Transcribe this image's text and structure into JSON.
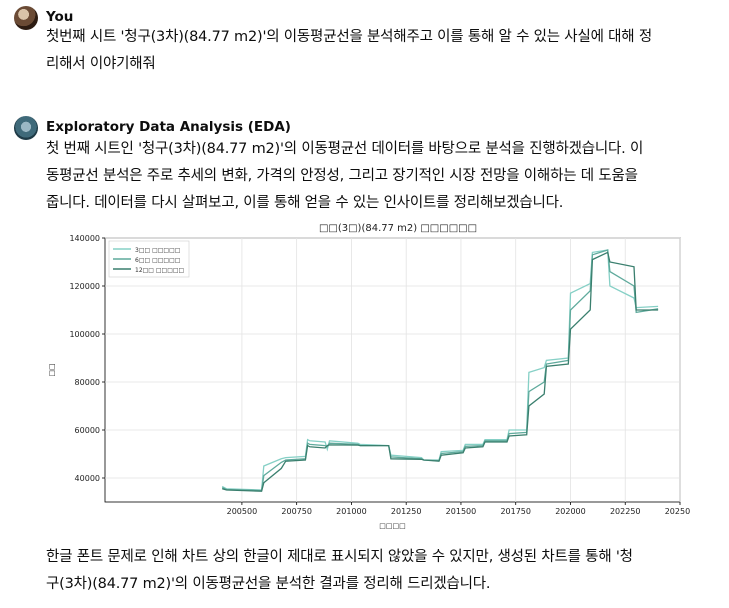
{
  "user": {
    "name": "You",
    "message": [
      "첫번째 시트 '청구(3차)(84.77 m2)'의 이동평균선을 분석해주고 이를 통해 알 수 있는 사실에 대해 정",
      "리해서 이야기해줘"
    ]
  },
  "assistant": {
    "name": "Exploratory Data Analysis (EDA)",
    "intro": [
      "첫 번째 시트인 '청구(3차)(84.77 m2)'의 이동평균선 데이터를 바탕으로 분석을 진행하겠습니다. 이",
      "동평균선 분석은 주로 추세의 변화, 가격의 안정성, 그리고 장기적인 시장 전망을 이해하는 데 도움을",
      "줍니다. 데이터를 다시 살펴보고, 이를 통해 얻을 수 있는 인사이트를 정리해보겠습니다."
    ],
    "outro": [
      "한글 폰트 문제로 인해 차트 상의 한글이 제대로 표시되지 않았을 수 있지만, 생성된 차트를 통해 '청",
      "구(3차)(84.77 m2)'의 이동평균선을 분석한 결과를 정리해 드리겠습니다."
    ]
  },
  "colors": {
    "ma3": "#86d0c6",
    "ma6": "#5faa9c",
    "ma12": "#3a7f6e"
  },
  "chart_data": {
    "type": "line",
    "title": "□□(3□)(84.77 m2) □□□□□□",
    "xlabel": "□□□□",
    "ylabel": "□□",
    "xlim": [
      199875,
      202500
    ],
    "ylim": [
      30000,
      140000
    ],
    "xticks": [
      200500,
      200750,
      201000,
      201250,
      201500,
      201750,
      202000,
      202250,
      202500
    ],
    "xtick_labels": [
      "200500",
      "200750",
      "201000",
      "201250",
      "201500",
      "201750",
      "202000",
      "202250",
      "202500"
    ],
    "yticks": [
      40000,
      60000,
      80000,
      100000,
      120000,
      140000
    ],
    "ytick_labels": [
      "40000",
      "60000",
      "80000",
      "100000",
      "120000",
      "140000"
    ],
    "legend_position": "top-left",
    "series": [
      {
        "name": "3□□ □□□□□",
        "color_key": "ma3",
        "x": [
          200410,
          200430,
          200590,
          200600,
          200680,
          200700,
          200790,
          200800,
          200810,
          200880,
          200890,
          200900,
          201030,
          201040,
          201170,
          201180,
          201320,
          201330,
          201400,
          201410,
          201510,
          201520,
          201600,
          201610,
          201710,
          201720,
          201800,
          201810,
          201880,
          201890,
          201990,
          202000,
          202090,
          202100,
          202170,
          202180,
          202290,
          202300,
          202400
        ],
        "y": [
          36500,
          35500,
          35000,
          45000,
          48000,
          48500,
          49000,
          56000,
          55500,
          55000,
          52000,
          55500,
          54500,
          54000,
          53500,
          49500,
          48500,
          47500,
          47500,
          51000,
          51500,
          54000,
          54000,
          56000,
          56000,
          60000,
          60000,
          84000,
          86000,
          89000,
          90000,
          117000,
          121000,
          134000,
          135000,
          120000,
          115000,
          111000,
          111500
        ]
      },
      {
        "name": "6□□ □□□□□",
        "color_key": "ma6",
        "x": [
          200410,
          200430,
          200590,
          200600,
          200680,
          200700,
          200790,
          200800,
          200810,
          200880,
          200890,
          200900,
          201030,
          201040,
          201170,
          201180,
          201320,
          201330,
          201400,
          201410,
          201510,
          201520,
          201600,
          201610,
          201710,
          201720,
          201800,
          201810,
          201880,
          201890,
          201990,
          202000,
          202090,
          202100,
          202170,
          202180,
          202290,
          202300,
          202400
        ],
        "y": [
          36000,
          35200,
          34800,
          41000,
          46500,
          47500,
          48000,
          54500,
          54000,
          53500,
          53000,
          54500,
          54000,
          53500,
          53500,
          48800,
          48000,
          47500,
          47200,
          50200,
          51000,
          53200,
          53500,
          55500,
          55500,
          58500,
          59000,
          76000,
          80000,
          87500,
          89000,
          110000,
          118000,
          133000,
          135000,
          126000,
          120000,
          109000,
          110500
        ]
      },
      {
        "name": "12□□ □□□□□",
        "color_key": "ma12",
        "x": [
          200410,
          200430,
          200590,
          200600,
          200680,
          200700,
          200790,
          200800,
          200810,
          200880,
          200890,
          200900,
          201030,
          201040,
          201170,
          201180,
          201320,
          201330,
          201400,
          201410,
          201510,
          201520,
          201600,
          201610,
          201710,
          201720,
          201800,
          201810,
          201880,
          201890,
          201990,
          202000,
          202090,
          202100,
          202170,
          202180,
          202290,
          202300,
          202400
        ],
        "y": [
          35500,
          35000,
          34500,
          38000,
          44000,
          47000,
          47500,
          53500,
          53000,
          52500,
          53500,
          53800,
          53700,
          53500,
          53500,
          48000,
          47800,
          47500,
          47000,
          49500,
          50500,
          52500,
          53000,
          55000,
          55000,
          57500,
          58000,
          70000,
          75000,
          86500,
          87500,
          102000,
          110000,
          131000,
          134000,
          130000,
          128000,
          110000,
          110000
        ]
      }
    ]
  }
}
